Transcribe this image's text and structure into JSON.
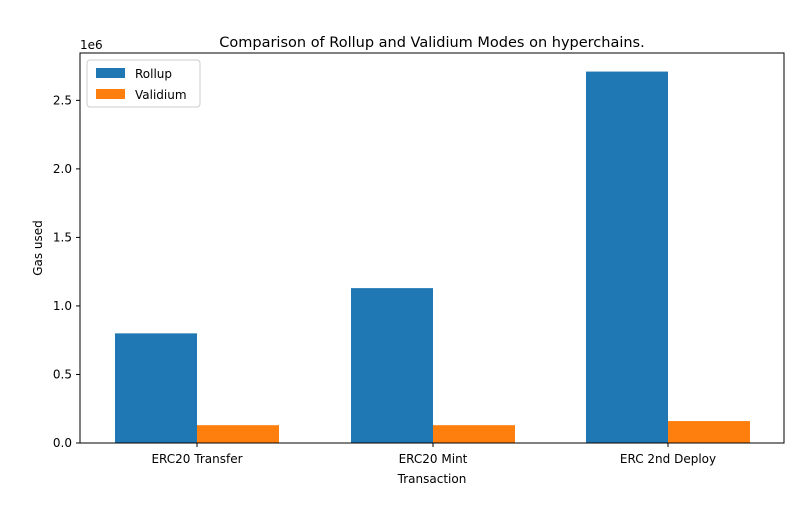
{
  "chart_data": {
    "type": "bar",
    "title": "Comparison of Rollup and Validium Modes on hyperchains.",
    "xlabel": "Transaction",
    "ylabel": "Gas used",
    "y_offset_label": "1e6",
    "categories": [
      "ERC20 Transfer",
      "ERC20 Mint",
      "ERC 2nd Deploy"
    ],
    "series": [
      {
        "name": "Rollup",
        "color": "#1f77b4",
        "values": [
          800000,
          1130000,
          2710000
        ]
      },
      {
        "name": "Validium",
        "color": "#ff7f0e",
        "values": [
          130000,
          130000,
          160000
        ]
      }
    ],
    "ylim": [
      0,
      2845500
    ],
    "yticks": [
      0,
      500000,
      1000000,
      1500000,
      2000000,
      2500000
    ],
    "ytick_labels": [
      "0.0",
      "0.5",
      "1.0",
      "1.5",
      "2.0",
      "2.5"
    ],
    "legend_position": "top-left",
    "grid": false
  }
}
